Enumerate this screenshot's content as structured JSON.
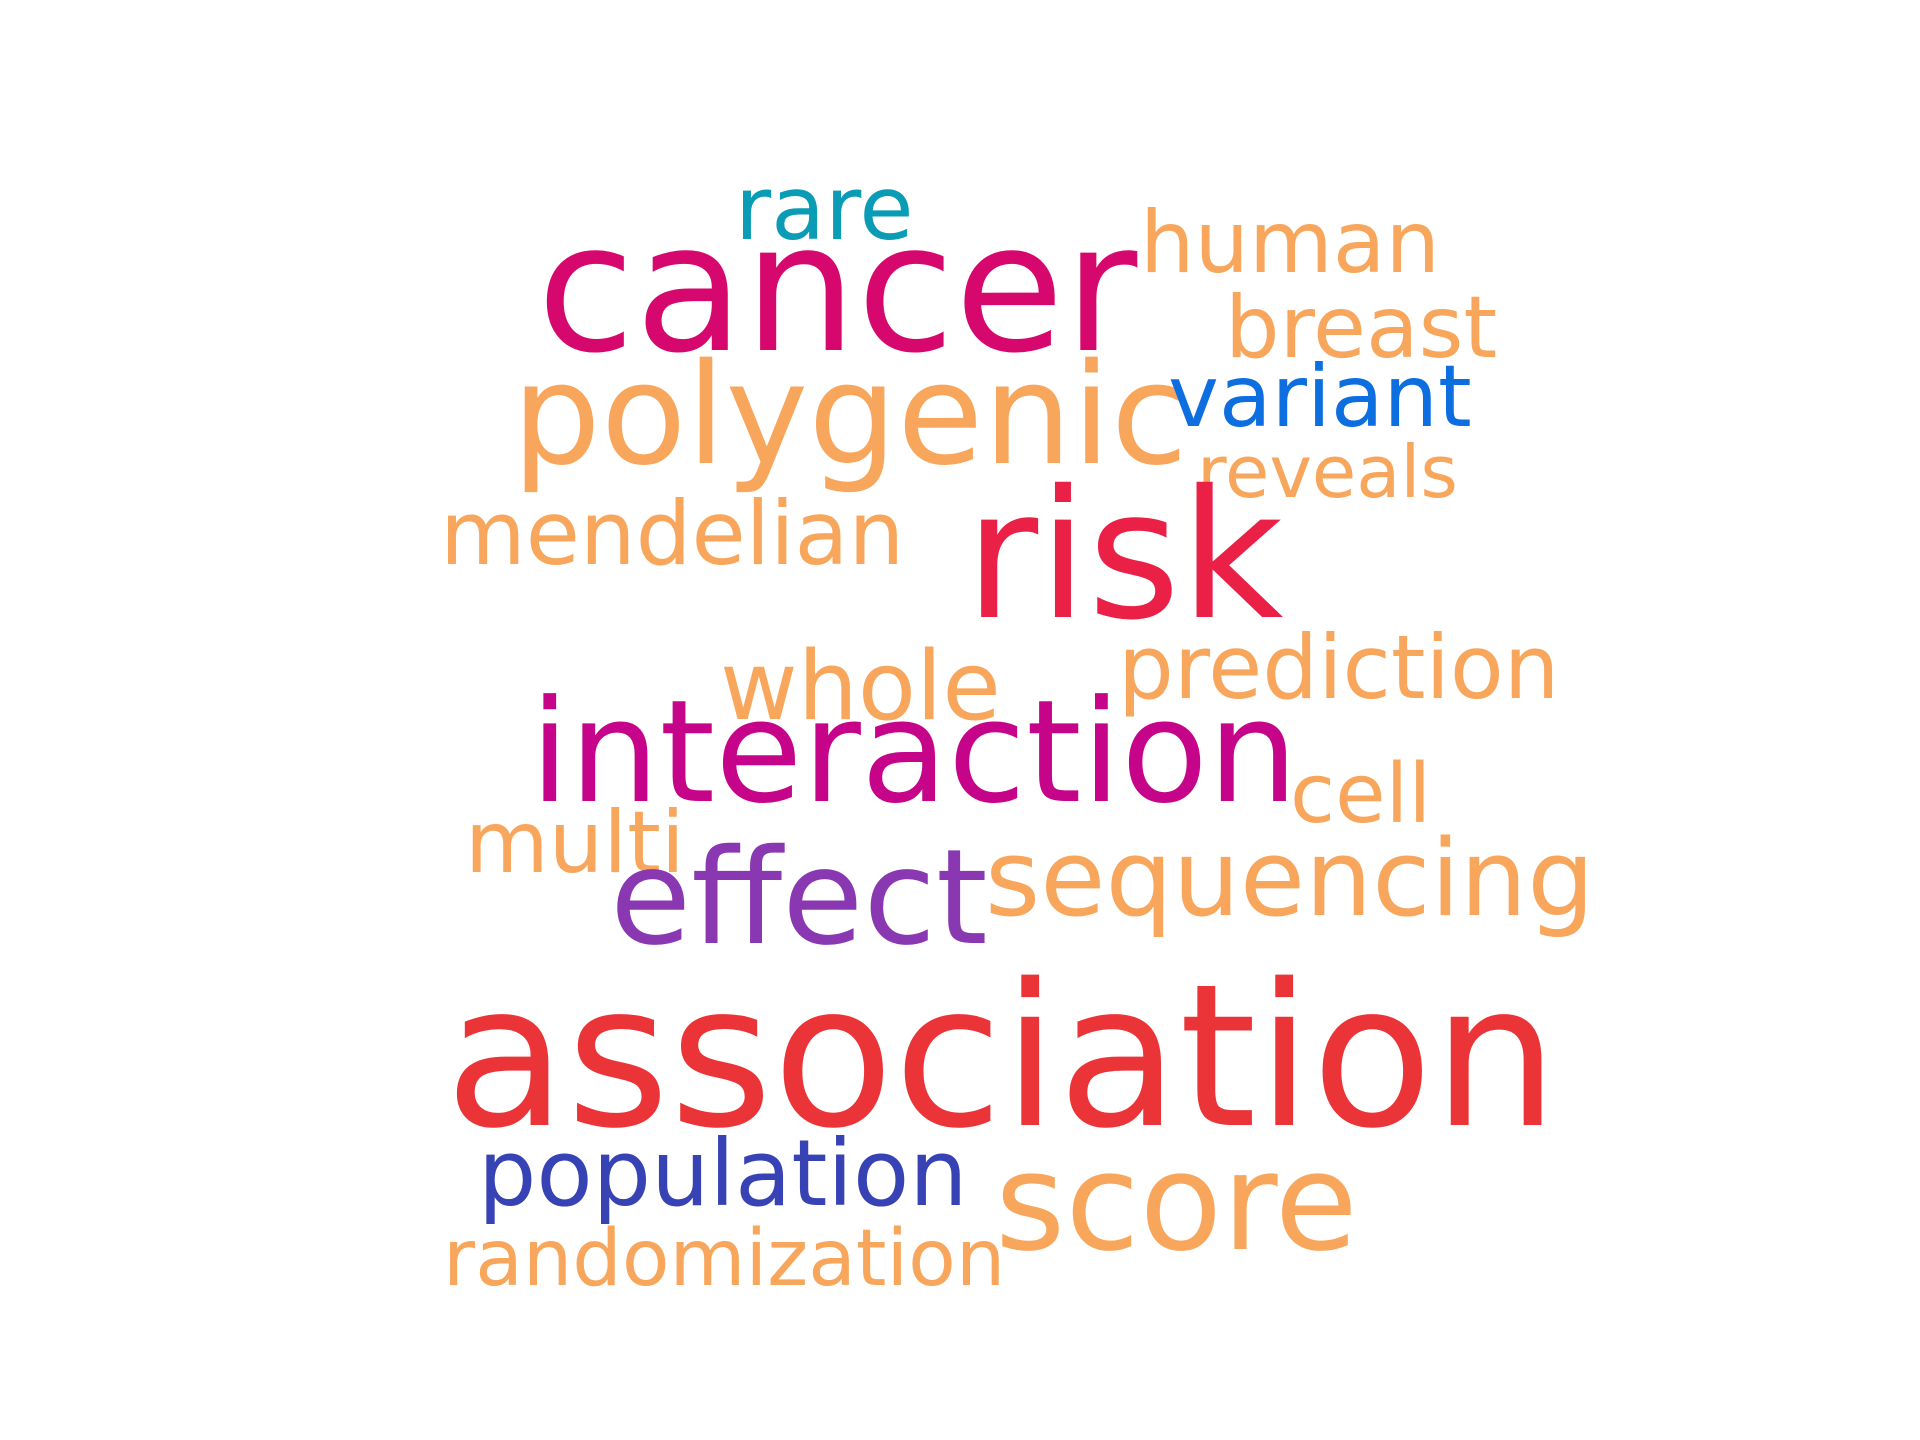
{
  "word_cloud": {
    "words": [
      {
        "id": "rare",
        "text": "rare",
        "color": "#0a9bb5"
      },
      {
        "id": "cancer",
        "text": "cancer",
        "color": "#d6086e"
      },
      {
        "id": "human",
        "text": "human",
        "color": "#f7a65c"
      },
      {
        "id": "breast",
        "text": "breast",
        "color": "#f7a65c"
      },
      {
        "id": "polygenic",
        "text": "polygenic",
        "color": "#f7a65c"
      },
      {
        "id": "variant",
        "text": "variant",
        "color": "#0d6ee0"
      },
      {
        "id": "reveals",
        "text": "reveals",
        "color": "#f7a65c"
      },
      {
        "id": "mendelian",
        "text": "mendelian",
        "color": "#f7a65c"
      },
      {
        "id": "risk",
        "text": "risk",
        "color": "#ea2047"
      },
      {
        "id": "whole",
        "text": "whole",
        "color": "#f7a65c"
      },
      {
        "id": "prediction",
        "text": "prediction",
        "color": "#f7a65c"
      },
      {
        "id": "interaction",
        "text": "interaction",
        "color": "#c6048a"
      },
      {
        "id": "cell",
        "text": "cell",
        "color": "#f7a65c"
      },
      {
        "id": "multi",
        "text": "multi",
        "color": "#f7a65c"
      },
      {
        "id": "effect",
        "text": "effect",
        "color": "#8a37b2"
      },
      {
        "id": "sequencing",
        "text": "sequencing",
        "color": "#f7a65c"
      },
      {
        "id": "association",
        "text": "association",
        "color": "#ea3438"
      },
      {
        "id": "population",
        "text": "population",
        "color": "#3742b5"
      },
      {
        "id": "score",
        "text": "score",
        "color": "#f7a65c"
      },
      {
        "id": "randomization",
        "text": "randomization",
        "color": "#f7a65c"
      }
    ]
  }
}
